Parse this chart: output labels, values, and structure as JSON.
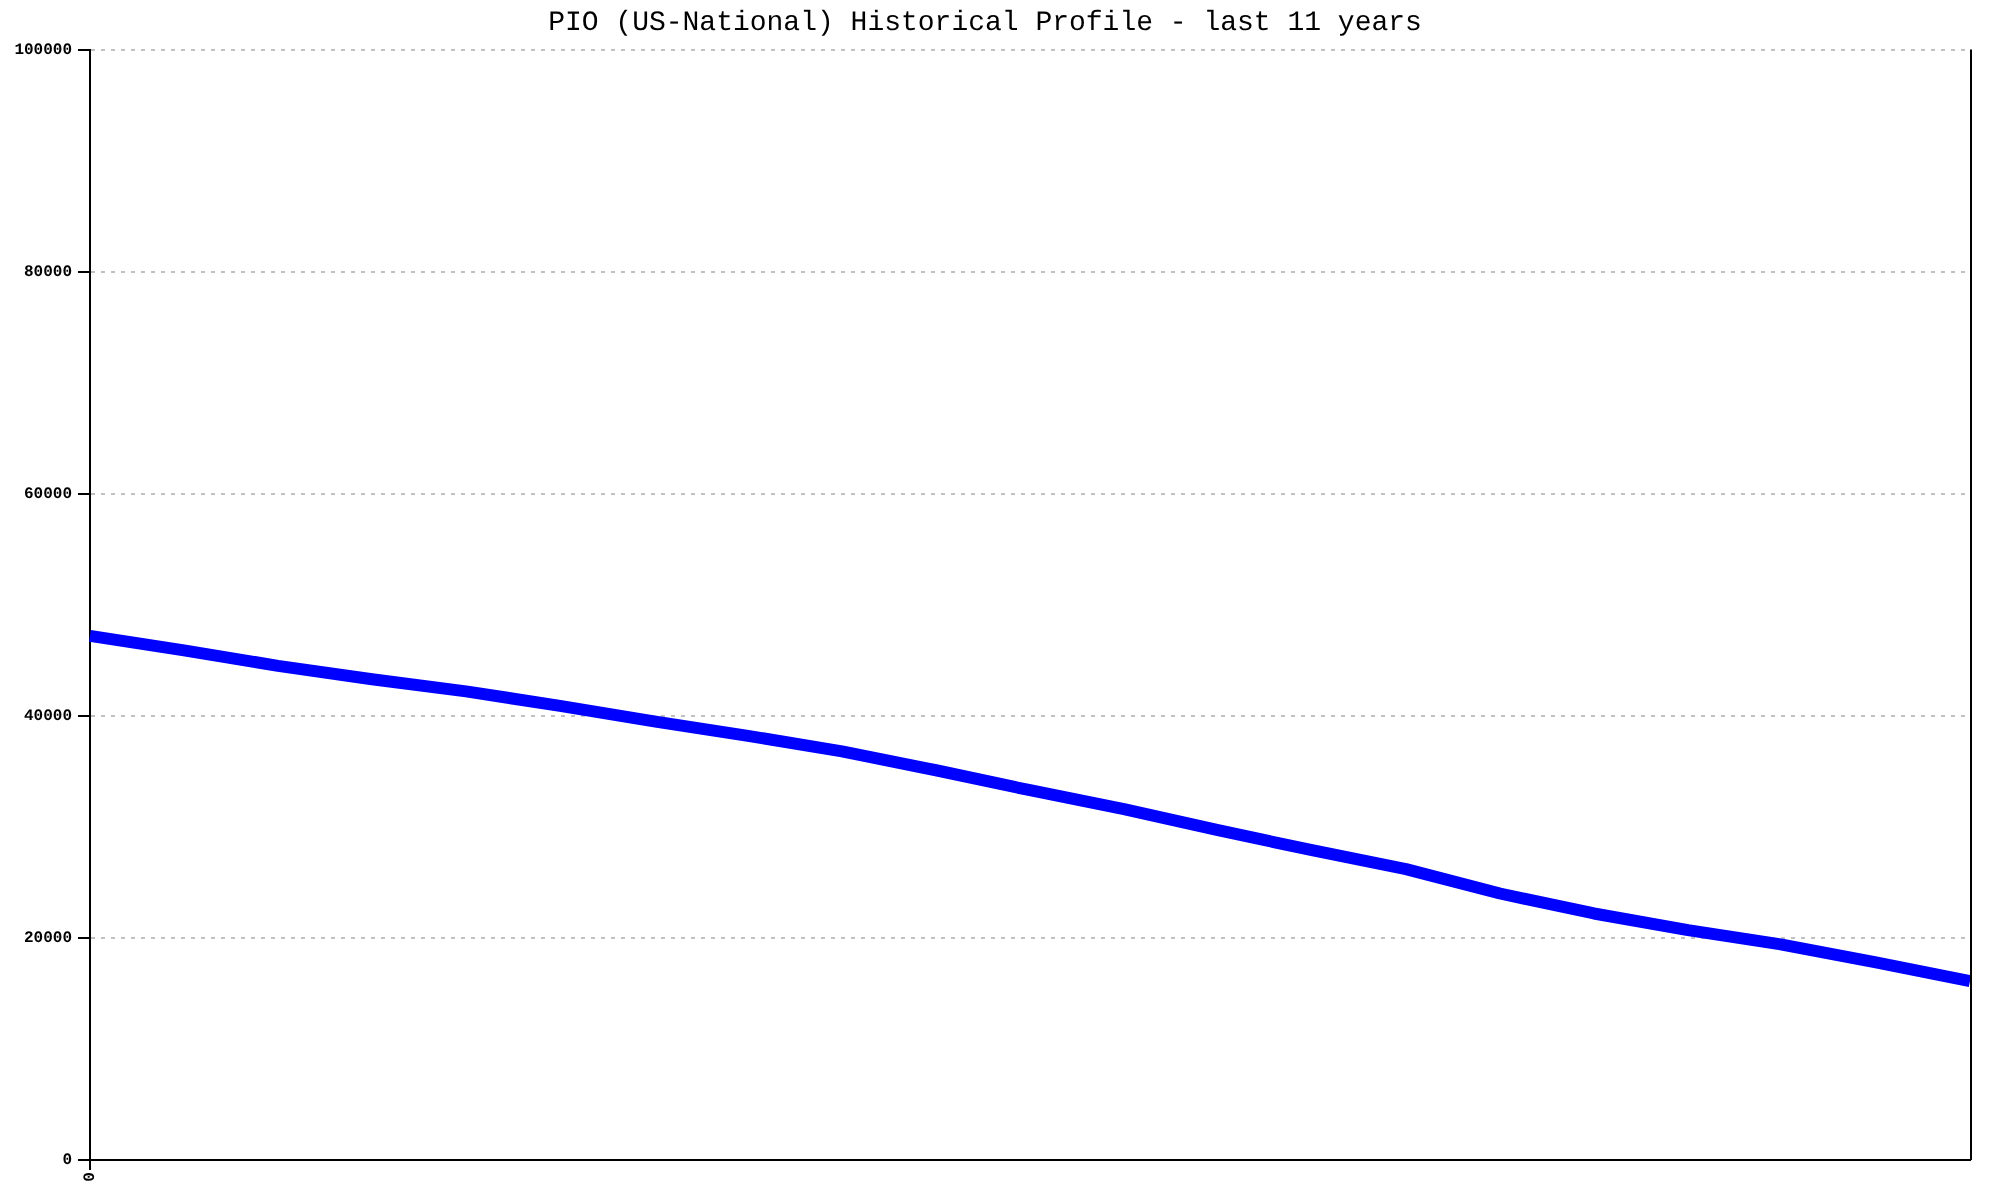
{
  "chart_data": {
    "type": "line",
    "title": "PIO (US-National) Historical Profile - last 11 years",
    "categories": [
      "0",
      null,
      null,
      null,
      null,
      null,
      null,
      null,
      null,
      null,
      null,
      null,
      null,
      null,
      null,
      null,
      null,
      null,
      null,
      null,
      null
    ],
    "values": [
      47200,
      45900,
      44500,
      43300,
      42200,
      40900,
      39500,
      38200,
      36800,
      35100,
      33300,
      31600,
      29700,
      27900,
      26200,
      24000,
      22200,
      20700,
      19400,
      17800,
      16100
    ],
    "color": "#0000ff",
    "ylim": [
      0,
      100000
    ],
    "yticks": [
      0,
      20000,
      40000,
      60000,
      80000,
      100000
    ],
    "grid": "y",
    "marker": "none",
    "line_style": "solid"
  }
}
